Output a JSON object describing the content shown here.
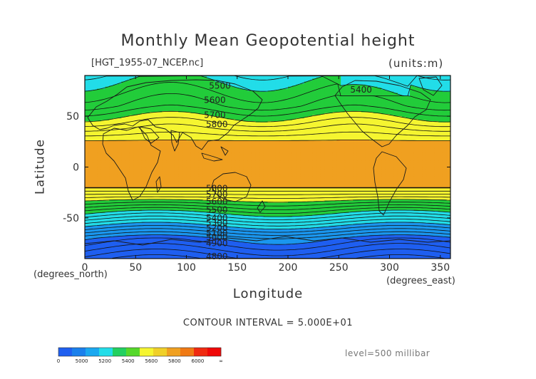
{
  "chart_data": {
    "type": "heatmap",
    "title": "Monthly Mean Geopotential height",
    "file_label": "[HGT_1955-07_NCEP.nc]",
    "units": "(units:m)",
    "xlabel": "Longitude",
    "ylabel": "Latitude",
    "x_unit_label": "(degrees_east)",
    "y_unit_label": "(degrees_north)",
    "xlim": [
      0,
      360
    ],
    "ylim": [
      -90,
      90
    ],
    "x_ticks": [
      0,
      50,
      100,
      150,
      200,
      250,
      300,
      350
    ],
    "y_ticks": [
      50,
      0,
      -50
    ],
    "contour_interval_text": "CONTOUR INTERVAL = 5.000E+01",
    "level_text": "level=500 millibar",
    "contour_labels": [
      {
        "text": "5500",
        "lon": 133,
        "lat": 80
      },
      {
        "text": "5400",
        "lon": 272,
        "lat": 76
      },
      {
        "text": "5600",
        "lon": 128,
        "lat": 66
      },
      {
        "text": "5700",
        "lon": 128,
        "lat": 51
      },
      {
        "text": "5800",
        "lon": 130,
        "lat": 42
      },
      {
        "text": "5800",
        "lon": 130,
        "lat": -21
      },
      {
        "text": "5700",
        "lon": 130,
        "lat": -27
      },
      {
        "text": "5600",
        "lon": 130,
        "lat": -34
      },
      {
        "text": "5500",
        "lon": 130,
        "lat": -42
      },
      {
        "text": "5400",
        "lon": 130,
        "lat": -50
      },
      {
        "text": "5300",
        "lon": 130,
        "lat": -55
      },
      {
        "text": "5200",
        "lon": 130,
        "lat": -60
      },
      {
        "text": "5100",
        "lon": 130,
        "lat": -65
      },
      {
        "text": "5000",
        "lon": 130,
        "lat": -69
      },
      {
        "text": "4900",
        "lon": 130,
        "lat": -75
      },
      {
        "text": "4800",
        "lon": 130,
        "lat": -88
      }
    ],
    "value_bands": [
      {
        "min": 4800,
        "max": 5000,
        "color": "#1f5ff0"
      },
      {
        "min": 5000,
        "max": 5200,
        "color": "#1a96ee"
      },
      {
        "min": 5200,
        "max": 5400,
        "color": "#22dde8"
      },
      {
        "min": 5400,
        "max": 5600,
        "color": "#22cc3a"
      },
      {
        "min": 5600,
        "max": 5800,
        "color": "#f5f530"
      },
      {
        "min": 5800,
        "max": 6000,
        "color": "#f0a020"
      }
    ],
    "colorbar": {
      "ticks": [
        "0",
        "5000",
        "5200",
        "5400",
        "5600",
        "5800",
        "6000",
        "∞"
      ],
      "colors": [
        "#1f5ff0",
        "#1a80ec",
        "#1aa8f0",
        "#22dde8",
        "#22d060",
        "#55d82a",
        "#f5f530",
        "#f0d028",
        "#f0a020",
        "#f07a14",
        "#f02a10",
        "#f00808"
      ]
    }
  }
}
